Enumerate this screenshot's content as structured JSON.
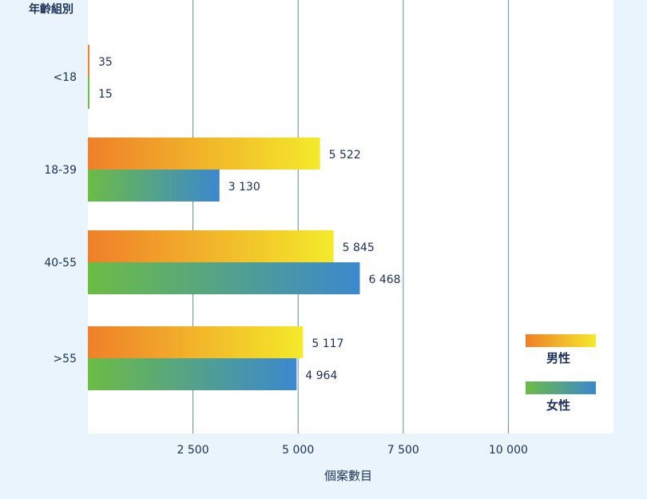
{
  "chart_data": {
    "type": "bar",
    "orientation": "horizontal",
    "ylabel": "年齡組別",
    "xlabel": "個案數目",
    "categories": [
      "<18",
      "18-39",
      "40-55",
      ">55"
    ],
    "series": [
      {
        "name": "男性",
        "values": [
          35,
          5522,
          5845,
          5117
        ],
        "value_labels": [
          "35",
          "5 522",
          "5 845",
          "5 117"
        ],
        "colors": [
          "#ef7f2a",
          "#f4ea2a"
        ]
      },
      {
        "name": "女性",
        "values": [
          15,
          3130,
          6468,
          4964
        ],
        "value_labels": [
          "15",
          "3 130",
          "6 468",
          "4 964"
        ],
        "colors": [
          "#6cbc45",
          "#3b88cf"
        ]
      }
    ],
    "xlim": [
      0,
      12500
    ],
    "x_ticks": [
      {
        "value": 2500,
        "label": "2 500"
      },
      {
        "value": 5000,
        "label": "5 000"
      },
      {
        "value": 7500,
        "label": "7 500"
      },
      {
        "value": 10000,
        "label": "10  000"
      }
    ],
    "grid": "vertical",
    "legend_position": "right",
    "background_color": "#eaf4fc",
    "plot_background": "#ffffff",
    "grid_color": "#5f8ea6"
  }
}
